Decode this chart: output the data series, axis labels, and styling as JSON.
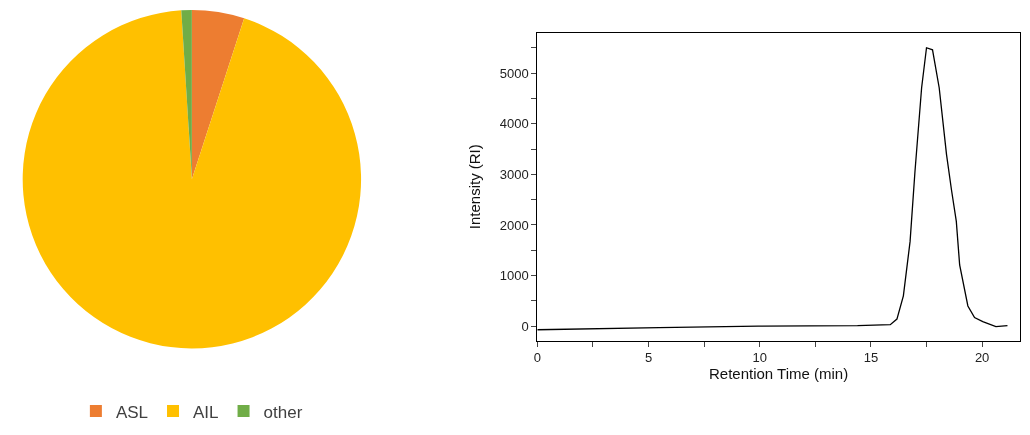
{
  "chart_data": [
    {
      "type": "pie",
      "categories": [
        "ASL",
        "AIL",
        "other"
      ],
      "values": [
        5,
        94,
        1
      ],
      "colors": [
        "#ed7d31",
        "#ffc000",
        "#70ad47"
      ],
      "legend": "bottom"
    },
    {
      "type": "line",
      "xlabel": "Retention Time (min)",
      "ylabel": "Intensity (RI)",
      "xlim": [
        0,
        21.7
      ],
      "ylim": [
        -290,
        5800
      ],
      "xticks": [
        0,
        {
          "value": 2.5,
          "label": null
        },
        5,
        {
          "value": 7.5,
          "label": null
        },
        10,
        {
          "value": 12.5,
          "label": null
        },
        15,
        {
          "value": 17.5,
          "label": null
        },
        20
      ],
      "yticks": [
        0,
        {
          "value": 500,
          "label": null
        },
        1000,
        {
          "value": 1500,
          "label": null
        },
        2000,
        {
          "value": 2500,
          "label": null
        },
        3000,
        {
          "value": 3500,
          "label": null
        },
        4000,
        {
          "value": 4500,
          "label": null
        },
        5000,
        {
          "value": 5500,
          "label": null
        }
      ],
      "x": [
        0,
        5.47,
        9.93,
        14.4,
        15.87,
        16.17,
        16.46,
        16.76,
        16.98,
        17.28,
        17.5,
        17.77,
        18.07,
        18.4,
        18.62,
        18.84,
        18.99,
        19.36,
        19.66,
        20.03,
        20.62,
        21.14
      ],
      "series": [
        {
          "color": "#000000",
          "values": [
            -70,
            -30,
            0,
            10,
            30,
            140,
            600,
            1670,
            3050,
            4710,
            5500,
            5460,
            4710,
            3390,
            2700,
            2070,
            1210,
            400,
            170,
            90,
            -10,
            10
          ]
        }
      ],
      "legend": false,
      "marker": "none",
      "line_style": "solid"
    }
  ]
}
